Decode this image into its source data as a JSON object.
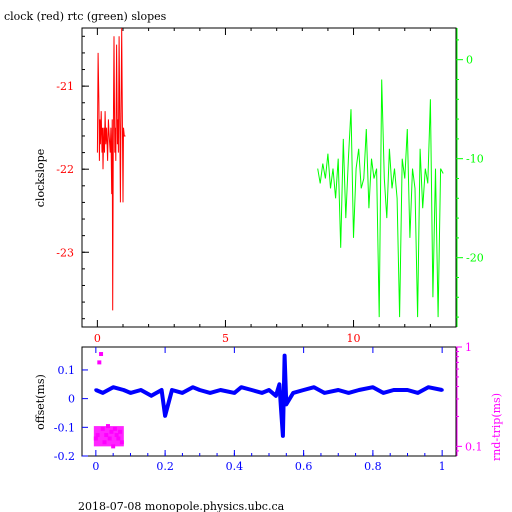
{
  "title": "clock (red) rtc (green) slopes",
  "footer": "2018-07-08  monopole.physics.ubc.ca",
  "colors": {
    "red": "#ff0000",
    "green": "#00ff00",
    "blue": "#0000ff",
    "magenta": "#ff00ff",
    "black": "#000000"
  },
  "chart_data": [
    {
      "type": "line",
      "ylabel": "clockslope",
      "xlim": [
        -0.6,
        14.0
      ],
      "ylim": [
        -23.9,
        -20.3
      ],
      "x_ticks": [
        "0",
        "5",
        "10"
      ],
      "x_tick_values": [
        0,
        5,
        10
      ],
      "y_left_ticks": [
        "-21",
        "-22",
        "-23"
      ],
      "y_left_tick_values": [
        -21,
        -22,
        -23
      ],
      "y_right_ticks": [
        "0",
        "-10",
        "-20"
      ],
      "y_right_tick_values": [
        0,
        -10,
        -20
      ],
      "y_right_lim": [
        -27.0,
        3.2
      ],
      "series": [
        {
          "color": "red",
          "axis": "left",
          "x": [
            0.0,
            0.03,
            0.06,
            0.08,
            0.1,
            0.12,
            0.15,
            0.18,
            0.2,
            0.22,
            0.25,
            0.28,
            0.3,
            0.33,
            0.36,
            0.4,
            0.43,
            0.46,
            0.5,
            0.53,
            0.56,
            0.58,
            0.6,
            0.62,
            0.65,
            0.68,
            0.7,
            0.72,
            0.75,
            0.78,
            0.8,
            0.82,
            0.85,
            0.88,
            0.9,
            0.92,
            0.95,
            0.98,
            1.0,
            1.02,
            1.05,
            1.1
          ],
          "y": [
            -21.8,
            -20.6,
            -21.2,
            -21.9,
            -21.4,
            -21.7,
            -21.3,
            -21.8,
            -21.5,
            -22.0,
            -21.5,
            -21.8,
            -21.3,
            -21.7,
            -21.5,
            -21.9,
            -21.4,
            -21.6,
            -21.8,
            -21.5,
            -22.3,
            -21.4,
            -23.7,
            -21.6,
            -20.4,
            -21.8,
            -21.5,
            -21.9,
            -20.5,
            -21.7,
            -21.4,
            -21.8,
            -20.4,
            -21.6,
            -22.4,
            -21.5,
            -20.3,
            -21.6,
            -22.4,
            -21.5,
            -21.6,
            -21.6
          ]
        },
        {
          "color": "green",
          "axis": "right",
          "x": [
            8.6,
            8.7,
            8.8,
            8.9,
            9.0,
            9.1,
            9.2,
            9.3,
            9.4,
            9.5,
            9.6,
            9.7,
            9.8,
            9.9,
            10.0,
            10.1,
            10.2,
            10.3,
            10.4,
            10.5,
            10.6,
            10.7,
            10.8,
            10.9,
            11.0,
            11.1,
            11.2,
            11.3,
            11.4,
            11.5,
            11.6,
            11.7,
            11.8,
            11.9,
            12.0,
            12.1,
            12.2,
            12.3,
            12.4,
            12.5,
            12.6,
            12.7,
            12.8,
            12.9,
            13.0,
            13.1,
            13.2,
            13.3,
            13.4,
            13.5
          ],
          "y": [
            -11.0,
            -12.5,
            -10.5,
            -12.0,
            -9.5,
            -13.0,
            -11.0,
            -14.0,
            -10.0,
            -19.0,
            -8.0,
            -16.0,
            -10.0,
            -5.0,
            -18.0,
            -11.0,
            -9.0,
            -13.0,
            -12.0,
            -7.0,
            -15.0,
            -10.0,
            -12.0,
            -11.0,
            -26.0,
            -2.0,
            -12.0,
            -16.0,
            -9.0,
            -13.0,
            -11.0,
            -14.0,
            -26.0,
            -10.0,
            -12.0,
            -7.0,
            -18.0,
            -11.0,
            -13.0,
            -26.0,
            -9.0,
            -15.0,
            -11.0,
            -12.5,
            -4.0,
            -24.0,
            -11.0,
            -26.0,
            -11.0,
            -11.5
          ]
        }
      ]
    },
    {
      "type": "scatter",
      "ylabel": "offset(ms)",
      "y2label": "rnd-trip(ms)",
      "xlim": [
        -0.04,
        1.04
      ],
      "ylim": [
        -0.2,
        0.18
      ],
      "x_ticks": [
        "0",
        "0.2",
        "0.4",
        "0.6",
        "0.8",
        "1"
      ],
      "x_tick_values": [
        0,
        0.2,
        0.4,
        0.6,
        0.8,
        1
      ],
      "y_ticks": [
        "0.1",
        "0",
        "-0.1",
        "-0.2"
      ],
      "y_tick_values": [
        0.1,
        0,
        -0.1,
        -0.2
      ],
      "y2_scale": "log",
      "y2_ticks": [
        "1",
        "0.1"
      ],
      "y2_tick_values": [
        1,
        0.1
      ],
      "y2_lim": [
        0.08,
        1.0
      ],
      "series": [
        {
          "color": "blue",
          "axis": "left",
          "x": [
            0.0,
            0.02,
            0.05,
            0.08,
            0.1,
            0.13,
            0.16,
            0.19,
            0.2,
            0.22,
            0.25,
            0.28,
            0.3,
            0.33,
            0.36,
            0.4,
            0.42,
            0.45,
            0.48,
            0.5,
            0.52,
            0.53,
            0.535,
            0.54,
            0.545,
            0.55,
            0.57,
            0.6,
            0.63,
            0.66,
            0.7,
            0.73,
            0.76,
            0.8,
            0.83,
            0.86,
            0.9,
            0.93,
            0.96,
            1.0
          ],
          "y": [
            0.03,
            0.02,
            0.04,
            0.03,
            0.02,
            0.03,
            0.01,
            0.03,
            -0.06,
            0.03,
            0.02,
            0.04,
            0.03,
            0.02,
            0.03,
            0.02,
            0.04,
            0.03,
            0.02,
            0.03,
            0.01,
            0.05,
            -0.04,
            -0.13,
            0.15,
            -0.02,
            0.02,
            0.03,
            0.04,
            0.02,
            0.03,
            0.02,
            0.03,
            0.04,
            0.02,
            0.03,
            0.03,
            0.02,
            0.04,
            0.03
          ]
        },
        {
          "color": "magenta",
          "axis": "right",
          "x": [
            0.0,
            0.005,
            0.01,
            0.015,
            0.02,
            0.025,
            0.03,
            0.035,
            0.04,
            0.045,
            0.05,
            0.055,
            0.06,
            0.065,
            0.07,
            0.075
          ],
          "y": [
            0.12,
            0.13,
            0.7,
            0.85,
            0.15,
            0.11,
            0.13,
            0.16,
            0.12,
            0.14,
            0.1,
            0.15,
            0.13,
            0.12,
            0.14,
            0.11
          ]
        }
      ]
    }
  ]
}
